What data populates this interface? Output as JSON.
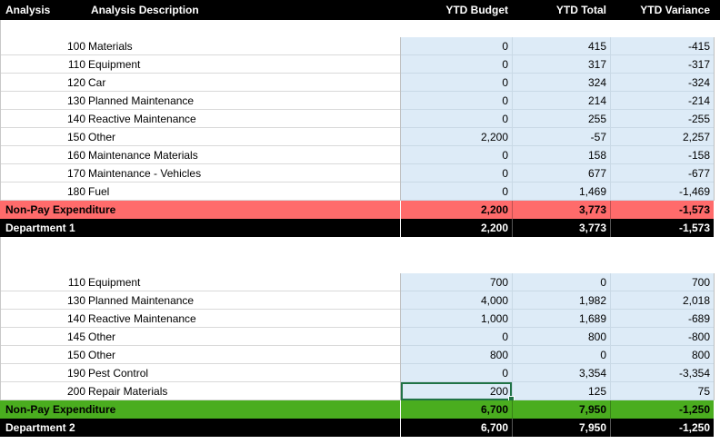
{
  "header": {
    "analysis": "Analysis",
    "analysis_description": "Analysis Description",
    "ytd_budget": "YTD Budget",
    "ytd_total": "YTD Total",
    "ytd_variance": "YTD Variance"
  },
  "section1": {
    "rows": [
      {
        "code": "100",
        "desc": "Materials",
        "budget": "0",
        "total": "415",
        "variance": "-415"
      },
      {
        "code": "110",
        "desc": "Equipment",
        "budget": "0",
        "total": "317",
        "variance": "-317"
      },
      {
        "code": "120",
        "desc": " Car",
        "budget": "0",
        "total": "324",
        "variance": "-324"
      },
      {
        "code": "130",
        "desc": "Planned Maintenance",
        "budget": "0",
        "total": "214",
        "variance": "-214"
      },
      {
        "code": "140",
        "desc": "Reactive Maintenance",
        "budget": "0",
        "total": "255",
        "variance": "-255"
      },
      {
        "code": "150",
        "desc": "Other",
        "budget": "2,200",
        "total": "-57",
        "variance": "2,257"
      },
      {
        "code": "160",
        "desc": " Maintenance Materials",
        "budget": "0",
        "total": "158",
        "variance": "-158"
      },
      {
        "code": "170",
        "desc": " Maintenance - Vehicles",
        "budget": "0",
        "total": "677",
        "variance": "-677"
      },
      {
        "code": "180",
        "desc": "Fuel",
        "budget": "0",
        "total": "1,469",
        "variance": "-1,469"
      }
    ],
    "subtotal": {
      "label": "Non-Pay Expenditure",
      "budget": "2,200",
      "total": "3,773",
      "variance": "-1,573"
    },
    "total": {
      "label": "Department 1",
      "budget": "2,200",
      "total": "3,773",
      "variance": "-1,573"
    }
  },
  "section2": {
    "rows": [
      {
        "code": "110",
        "desc": "Equipment",
        "budget": "700",
        "total": "0",
        "variance": "700"
      },
      {
        "code": "130",
        "desc": "Planned Maintenance",
        "budget": "4,000",
        "total": "1,982",
        "variance": "2,018"
      },
      {
        "code": "140",
        "desc": "Reactive Maintenance",
        "budget": "1,000",
        "total": "1,689",
        "variance": "-689"
      },
      {
        "code": "145",
        "desc": "Other",
        "budget": "0",
        "total": "800",
        "variance": "-800"
      },
      {
        "code": "150",
        "desc": "Other",
        "budget": "800",
        "total": "0",
        "variance": "800"
      },
      {
        "code": "190",
        "desc": "Pest Control",
        "budget": "0",
        "total": "3,354",
        "variance": "-3,354"
      },
      {
        "code": "200",
        "desc": "Repair Materials",
        "budget": "200",
        "total": "125",
        "variance": "75"
      }
    ],
    "subtotal": {
      "label": "Non-Pay Expenditure",
      "budget": "6,700",
      "total": "7,950",
      "variance": "-1,250"
    },
    "total": {
      "label": "Department 2",
      "budget": "6,700",
      "total": "7,950",
      "variance": "-1,250"
    }
  },
  "colors": {
    "header_bg": "#000000",
    "budget_area": "#ddebf7",
    "subtotal1": "#ff6b6b",
    "subtotal2": "#4aad1f",
    "selection": "#217346"
  }
}
